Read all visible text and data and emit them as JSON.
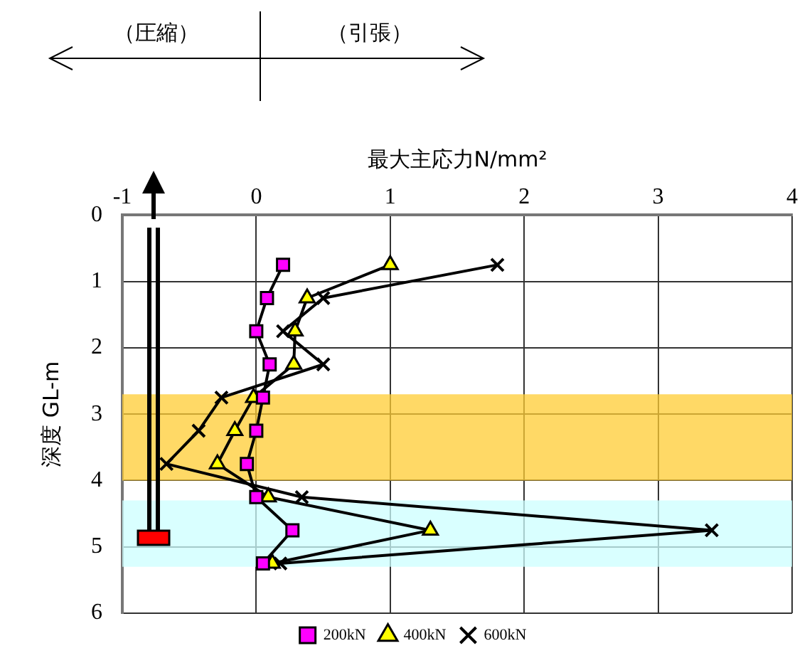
{
  "chart_data": {
    "type": "line",
    "xlabel": "最大主応力N/mm²",
    "ylabel": "深度 GL-m",
    "annotations": [
      "（圧縮）",
      "（引張）"
    ],
    "xlim": [
      -1,
      4
    ],
    "xticks": [
      -1,
      0,
      1,
      2,
      3,
      4
    ],
    "ylim": [
      6,
      0
    ],
    "yticks": [
      0,
      1,
      2,
      3,
      4,
      5,
      6
    ],
    "grid": true,
    "legend": "bottom",
    "line_style": "solid",
    "series": [
      {
        "name": "200kN",
        "color": "#ff00ff",
        "marker": "square",
        "x": [
          0.2,
          0.08,
          0,
          0.1,
          0.05,
          0,
          -0.07,
          0,
          0.27,
          0.05
        ],
        "values": [
          0.75,
          1.25,
          1.75,
          2.25,
          2.75,
          3.25,
          3.75,
          4.25,
          4.75,
          5.25
        ]
      },
      {
        "name": "400kN",
        "color": "#ffff00",
        "marker": "triangle",
        "x": [
          1.0,
          0.38,
          0.29,
          0.28,
          -0.02,
          -0.16,
          -0.29,
          0.09,
          1.3,
          0.12
        ],
        "values": [
          0.75,
          1.25,
          1.75,
          2.25,
          2.75,
          3.25,
          3.75,
          4.25,
          4.75,
          5.25
        ]
      },
      {
        "name": "600kN",
        "color": "#000000",
        "marker": "cross",
        "x": [
          1.8,
          0.5,
          0.2,
          0.5,
          -0.26,
          -0.43,
          -0.67,
          0.34,
          3.4,
          0.18
        ],
        "values": [
          0.75,
          1.25,
          1.75,
          2.25,
          2.75,
          3.25,
          3.75,
          4.25,
          4.75,
          5.25
        ]
      }
    ],
    "bands": [
      {
        "axis": "y",
        "from": 2.7,
        "to": 4.0,
        "color": "#ffcc33"
      },
      {
        "axis": "y",
        "from": 4.3,
        "to": 5.3,
        "color": "#ccffff"
      }
    ]
  }
}
